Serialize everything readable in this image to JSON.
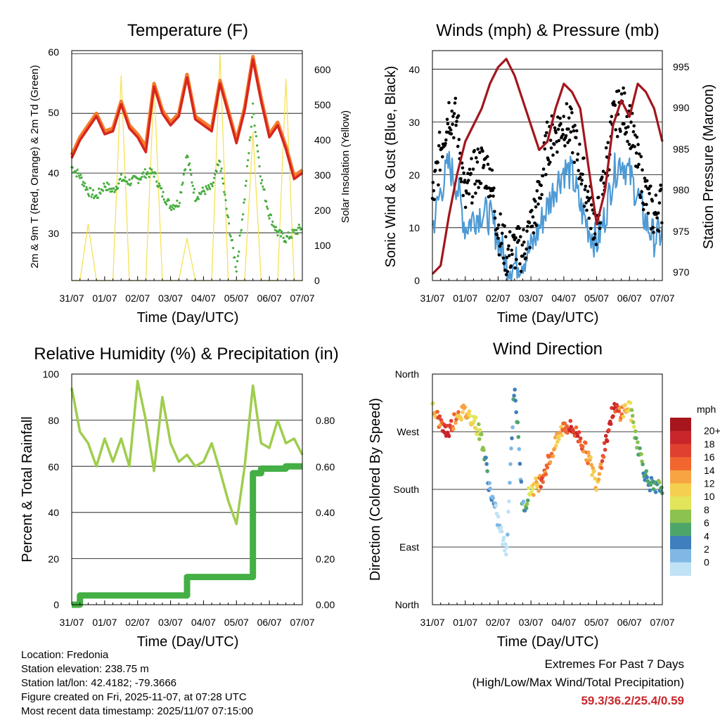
{
  "panels": {
    "temperature": {
      "title": "Temperature (F)",
      "ylabel_left": "2m & 9m T (Red, Orange) & 2m Td (Green)",
      "ylabel_right": "Solar Insolation (Yellow)",
      "xlabel": "Time (Day/UTC)",
      "left_ticks": [
        "30",
        "40",
        "50",
        "60"
      ],
      "right_ticks": [
        "0",
        "100",
        "200",
        "300",
        "400",
        "500",
        "600"
      ]
    },
    "winds": {
      "title": "Winds (mph) & Pressure (mb)",
      "ylabel_left": "Sonic Wind & Gust (Blue, Black)",
      "ylabel_right": "Station Pressure (Maroon)",
      "xlabel": "Time (Day/UTC)",
      "left_ticks": [
        "0",
        "10",
        "20",
        "30",
        "40"
      ],
      "right_ticks": [
        "970",
        "975",
        "980",
        "985",
        "990",
        "995"
      ]
    },
    "humidity": {
      "title": "Relative Humidity (%) & Precipitation (in)",
      "ylabel_left": "Percent & Total Rainfall",
      "xlabel": "Time (Day/UTC)",
      "left_ticks": [
        "0",
        "20",
        "40",
        "60",
        "80",
        "100"
      ],
      "right_ticks": [
        "0.00",
        "0.20",
        "0.40",
        "0.60",
        "0.80"
      ]
    },
    "direction": {
      "title": "Wind Direction",
      "ylabel_left": "Direction (Colored By Speed)",
      "xlabel": "Time (Day/UTC)",
      "left_ticks": [
        "North",
        "East",
        "South",
        "West",
        "North"
      ]
    }
  },
  "x_ticks": [
    "31/07",
    "01/07",
    "02/07",
    "03/07",
    "04/07",
    "05/07",
    "06/07",
    "07/07"
  ],
  "legend": {
    "unit": "mph",
    "labels": [
      "20+",
      "18",
      "16",
      "14",
      "12",
      "10",
      "8",
      "6",
      "4",
      "2",
      "0"
    ],
    "colors": [
      "#a6161c",
      "#c8262b",
      "#e0402f",
      "#f0662e",
      "#f7a443",
      "#f5cf4f",
      "#e2e55a",
      "#8cc24f",
      "#4ea56a",
      "#3f7fbd",
      "#7fb8e3",
      "#bfe2f5"
    ]
  },
  "colors": {
    "temp_2m": "#d7261e",
    "temp_9m": "#f47b2a",
    "dewpoint": "#46ac3e",
    "solar": "#f6e04a",
    "wind_sonic": "#4e9ad5",
    "wind_gust": "#000000",
    "pressure": "#a2161e",
    "rh": "#9fcd4d",
    "precip": "#44af44"
  },
  "info": {
    "location": "Location: Fredonia",
    "elevation": "Station elevation: 238.75 m",
    "latlon": "Station lat/lon: 42.4182; -79.3666",
    "created": "Figure created on Fri, 2025-11-07, at 07:28 UTC",
    "recent": "Most recent data timestamp: 2025/11/07 07:15:00"
  },
  "extremes": {
    "title1": "Extremes For Past 7 Days",
    "title2": "(High/Low/Max Wind/Total Precipitation)",
    "values": "59.3/36.2/25.4/0.59"
  },
  "chart_data": [
    {
      "type": "line",
      "title": "Temperature (F)",
      "xlabel": "Time (Day/UTC)",
      "x_days": [
        0,
        0.25,
        0.5,
        0.75,
        1.0,
        1.25,
        1.5,
        1.75,
        2.0,
        2.25,
        2.5,
        2.75,
        3.0,
        3.25,
        3.5,
        3.75,
        4.0,
        4.25,
        4.5,
        4.75,
        5.0,
        5.25,
        5.5,
        5.75,
        6.0,
        6.25,
        6.5,
        6.75,
        7.0
      ],
      "ylim": [
        22,
        60.5
      ],
      "y2lim": [
        0,
        650
      ],
      "series": [
        {
          "name": "2m T",
          "values": [
            42.5,
            45.5,
            47.5,
            49.5,
            46.5,
            47,
            51.5,
            47.5,
            46,
            43.5,
            54.5,
            50,
            48,
            49.5,
            56,
            49,
            48,
            47,
            55,
            50,
            45,
            50.5,
            59,
            52,
            46,
            48,
            44,
            39,
            40
          ]
        },
        {
          "name": "9m T",
          "values": [
            43,
            46,
            48,
            50,
            47,
            47.5,
            52,
            48,
            46.5,
            44.5,
            55,
            50.5,
            48.5,
            50,
            56.5,
            49.5,
            48.5,
            47.5,
            55.5,
            50.5,
            45.5,
            51,
            59.5,
            52.5,
            46.5,
            48.5,
            44.5,
            39.5,
            40.5
          ]
        },
        {
          "name": "2m Td",
          "values": [
            41,
            39.5,
            37,
            36,
            38,
            37,
            39,
            38.5,
            39,
            40,
            40,
            36.5,
            34.5,
            35,
            43,
            36,
            37,
            37.5,
            42,
            32,
            24,
            36,
            51,
            39,
            33,
            30,
            29,
            30,
            31
          ]
        },
        {
          "name": "Solar Insolation",
          "axis": "right",
          "values": [
            0,
            0,
            160,
            0,
            0,
            0,
            580,
            0,
            0,
            0,
            560,
            0,
            0,
            0,
            120,
            0,
            0,
            0,
            640,
            0,
            0,
            0,
            420,
            0,
            0,
            0,
            570,
            0,
            0
          ]
        }
      ]
    },
    {
      "type": "line",
      "title": "Winds (mph) & Pressure (mb)",
      "xlabel": "Time (Day/UTC)",
      "x_days": [
        0,
        0.25,
        0.5,
        0.75,
        1.0,
        1.25,
        1.5,
        1.75,
        2.0,
        2.25,
        2.5,
        2.75,
        3.0,
        3.25,
        3.5,
        3.75,
        4.0,
        4.25,
        4.5,
        4.75,
        5.0,
        5.25,
        5.5,
        5.75,
        6.0,
        6.25,
        6.5,
        6.75,
        7.0
      ],
      "ylim": [
        0,
        43.5
      ],
      "y2lim": [
        969.2,
        997
      ],
      "series": [
        {
          "name": "Sonic Wind",
          "values": [
            10,
            17,
            22,
            18,
            10,
            12,
            13,
            12,
            8,
            3,
            3,
            4,
            6,
            10,
            14,
            18,
            21,
            20,
            14,
            10,
            7,
            12,
            20,
            23,
            20,
            16,
            11,
            8,
            9
          ]
        },
        {
          "name": "Gust",
          "values": [
            15,
            25,
            32,
            30,
            15,
            20,
            22,
            20,
            10,
            5,
            6,
            6,
            10,
            16,
            26,
            28,
            30,
            28,
            22,
            15,
            10,
            20,
            30,
            33,
            30,
            22,
            16,
            12,
            15
          ]
        },
        {
          "name": "Station Pressure",
          "axis": "right",
          "values": [
            970,
            971,
            977,
            982,
            986,
            988,
            990,
            993,
            995,
            996,
            994,
            991,
            988,
            985,
            986,
            990,
            993,
            992,
            990,
            983,
            976,
            980,
            988,
            991,
            989,
            993,
            992,
            990,
            986
          ]
        }
      ]
    },
    {
      "type": "line",
      "title": "Relative Humidity (%) & Precipitation (in)",
      "xlabel": "Time (Day/UTC)",
      "x_days": [
        0,
        0.25,
        0.5,
        0.75,
        1.0,
        1.25,
        1.5,
        1.75,
        2.0,
        2.25,
        2.5,
        2.75,
        3.0,
        3.25,
        3.5,
        3.75,
        4.0,
        4.25,
        4.5,
        4.75,
        5.0,
        5.25,
        5.5,
        5.75,
        6.0,
        6.25,
        6.5,
        6.75,
        7.0
      ],
      "ylim": [
        0,
        100
      ],
      "y2lim": [
        0,
        1.0
      ],
      "series": [
        {
          "name": "Relative Humidity",
          "values": [
            94,
            75,
            70,
            60,
            72,
            62,
            72,
            60,
            97,
            80,
            58,
            90,
            70,
            62,
            65,
            60,
            62,
            70,
            58,
            45,
            35,
            60,
            95,
            70,
            68,
            80,
            70,
            72,
            65
          ]
        },
        {
          "name": "Total Precipitation",
          "axis": "right",
          "values": [
            0,
            0.04,
            0.04,
            0.04,
            0.04,
            0.04,
            0.04,
            0.04,
            0.04,
            0.04,
            0.04,
            0.04,
            0.04,
            0.04,
            0.12,
            0.12,
            0.12,
            0.12,
            0.12,
            0.12,
            0.12,
            0.12,
            0.57,
            0.59,
            0.59,
            0.59,
            0.6,
            0.6,
            0.6
          ]
        }
      ]
    },
    {
      "type": "scatter",
      "title": "Wind Direction",
      "xlabel": "Time (Day/UTC)",
      "y_ticks": [
        "North",
        "East",
        "South",
        "West",
        "North"
      ],
      "ylim": [
        0,
        360
      ],
      "x_days": [
        0,
        0.25,
        0.5,
        0.75,
        1.0,
        1.25,
        1.5,
        1.75,
        2.0,
        2.25,
        2.5,
        2.75,
        3.0,
        3.25,
        3.5,
        3.75,
        4.0,
        4.25,
        4.5,
        4.75,
        5.0,
        5.25,
        5.5,
        5.75,
        6.0,
        6.25,
        6.5,
        6.75,
        7.0
      ],
      "direction_deg": [
        315,
        280,
        270,
        300,
        300,
        290,
        260,
        180,
        130,
        80,
        350,
        150,
        180,
        190,
        220,
        250,
        280,
        275,
        260,
        230,
        190,
        250,
        305,
        300,
        310,
        250,
        200,
        180,
        185
      ],
      "speed_mph": [
        12,
        18,
        20,
        15,
        14,
        12,
        8,
        4,
        2,
        1,
        6,
        4,
        12,
        16,
        18,
        14,
        16,
        20,
        18,
        16,
        12,
        20,
        20,
        16,
        12,
        8,
        6,
        6,
        8
      ]
    }
  ]
}
